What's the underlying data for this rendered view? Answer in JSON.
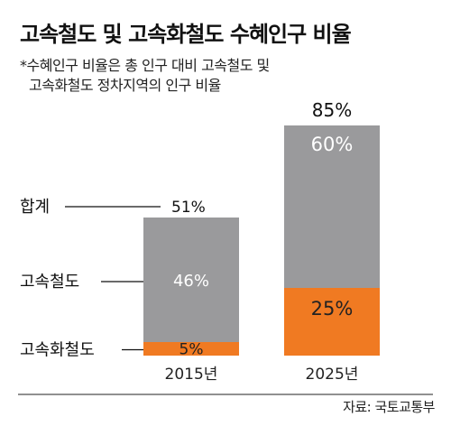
{
  "title": "고속철도 및 고속화철도 수혜인구 비율",
  "subtitle_lines": [
    "*수혜인구 비율은 총 인구 대비 고속철도 및",
    "고속화철도 정차지역의 인구 비율"
  ],
  "source": "자료: 국토교통부",
  "chart_data": {
    "type": "bar",
    "stacked": true,
    "categories": [
      "2015년",
      "2025년"
    ],
    "series": [
      {
        "name": "고속화철도",
        "values": [
          5,
          25
        ],
        "labels": [
          "5%",
          "25%"
        ],
        "color": "#f07a22"
      },
      {
        "name": "고속철도",
        "values": [
          46,
          60
        ],
        "labels": [
          "46%",
          "60%"
        ],
        "color": "#9a9a9c"
      }
    ],
    "totals": {
      "name": "합계",
      "values": [
        51,
        85
      ],
      "labels": [
        "51%",
        "85%"
      ]
    },
    "ylim": [
      0,
      85
    ],
    "legend_labels": [
      "합계",
      "고속철도",
      "고속화철도"
    ]
  }
}
